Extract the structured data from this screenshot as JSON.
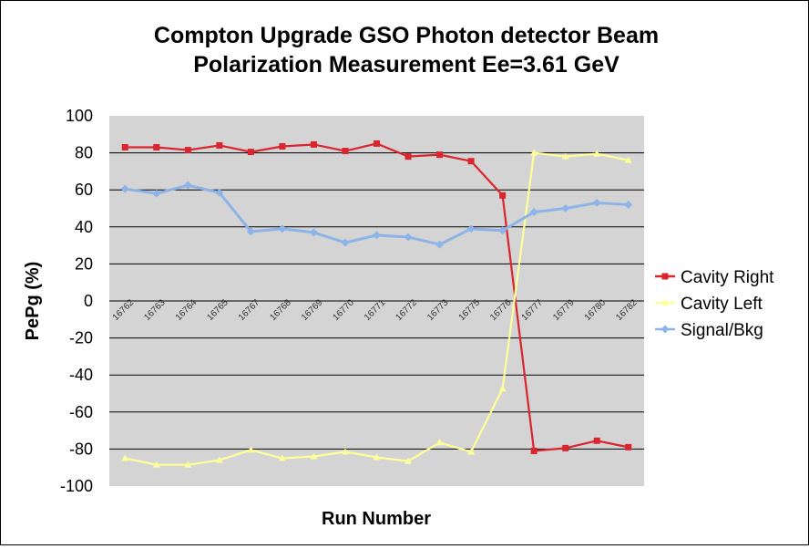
{
  "chart_data": {
    "type": "line",
    "title_lines": [
      "Compton Upgrade GSO Photon detector  Beam",
      "Polarization  Measurement Ee=3.61 GeV"
    ],
    "xlabel": "Run Number",
    "ylabel": "PePg (%)",
    "categories": [
      "16762",
      "16763",
      "16764",
      "16765",
      "16767",
      "16768",
      "16769",
      "16770",
      "16771",
      "16772",
      "16773",
      "16775",
      "16776",
      "16777",
      "16779",
      "16780",
      "16782"
    ],
    "ylim": [
      -100,
      100
    ],
    "yticks": [
      -100,
      -80,
      -60,
      -40,
      -20,
      0,
      20,
      40,
      60,
      80,
      100
    ],
    "grid": true,
    "legend_position": "right",
    "plot_background": "#d4d4d4",
    "series": [
      {
        "name": "Cavity Right",
        "color": "#d9252e",
        "marker": "square",
        "values": [
          83,
          83,
          81.5,
          84,
          80.5,
          83.5,
          84.5,
          81,
          85,
          78,
          79,
          75.5,
          57,
          -81,
          -79.5,
          -75.5,
          -79
        ]
      },
      {
        "name": "Cavity Left",
        "color": "#ffff99",
        "marker": "triangle",
        "values": [
          -85,
          -88.5,
          -88.5,
          -86,
          -80.5,
          -85,
          -84,
          -81.5,
          -84.5,
          -86.5,
          -76.5,
          -81.5,
          -47.5,
          80,
          78,
          79.5,
          76
        ]
      },
      {
        "name": "Signal/Bkg",
        "color": "#8cb4e8",
        "marker": "diamond",
        "values": [
          60.5,
          58,
          62.5,
          58.5,
          37.5,
          39,
          37,
          31.5,
          35.5,
          34.5,
          30.5,
          39,
          38,
          48,
          50,
          53,
          52
        ]
      }
    ]
  }
}
